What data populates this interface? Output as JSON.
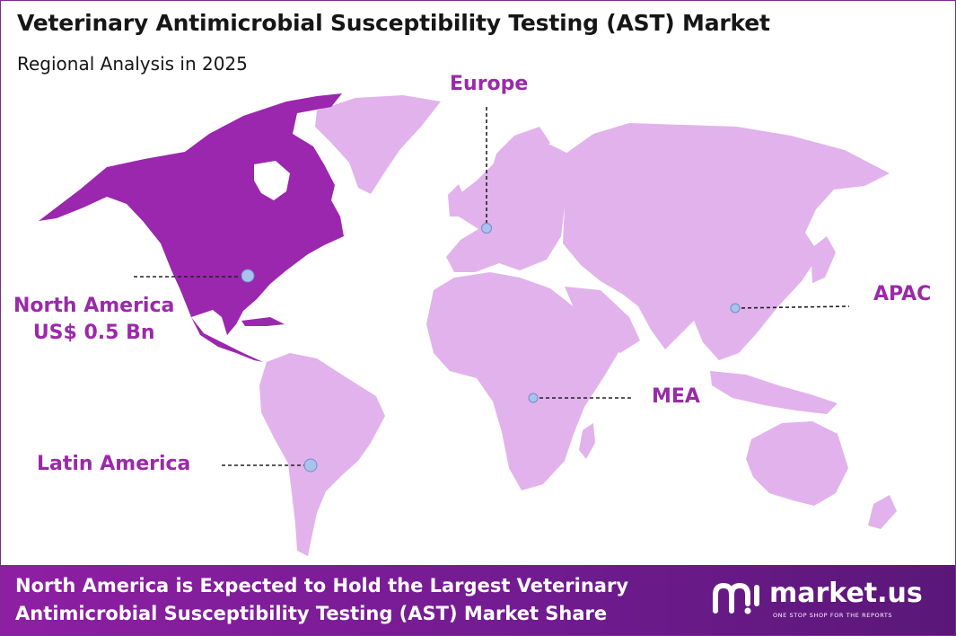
{
  "title": "Veterinary Antimicrobial Susceptibility Testing (AST) Market",
  "subtitle": "Regional Analysis in 2025",
  "regions": {
    "north_america": {
      "name": "North America",
      "value": "US$ 0.5 Bn",
      "color": "#9a27ad"
    },
    "europe": {
      "name": "Europe",
      "color": "#e2b2ec"
    },
    "apac": {
      "name": "APAC",
      "color": "#e2b2ec"
    },
    "mea": {
      "name": "MEA",
      "color": "#e2b2ec"
    },
    "latin_america": {
      "name": "Latin America",
      "color": "#e2b2ec"
    }
  },
  "footer": {
    "line1": "North America is Expected to Hold the Largest Veterinary",
    "line2": "Antimicrobial Susceptibility Testing (AST) Market Share"
  },
  "brand": {
    "name": "market.us",
    "tagline": "ONE STOP SHOP FOR THE REPORTS"
  },
  "colors": {
    "accent": "#9a2aa8",
    "highlight_region": "#9a27ad",
    "other_regions": "#e2b2ec",
    "marker": "#a9c2ee",
    "footer_bg": "#7d1d98"
  }
}
